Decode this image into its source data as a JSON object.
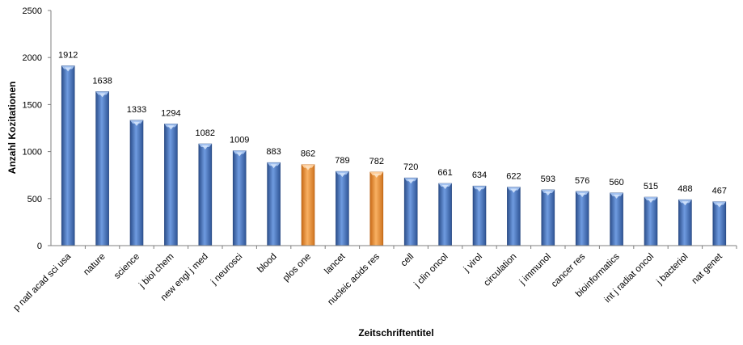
{
  "chart_data": {
    "type": "bar",
    "xlabel": "Zeitschriftentitel",
    "ylabel": "Anzahl Kozitationen",
    "ylim": [
      0,
      2500
    ],
    "yticks": [
      0,
      500,
      1000,
      1500,
      2000,
      2500
    ],
    "grid": false,
    "categories": [
      "p natl acad sci usa",
      "nature",
      "science",
      "j biol chem",
      "new engl j med",
      "j neurosci",
      "blood",
      "plos one",
      "lancet",
      "nucleic acids res",
      "cell",
      "j clin oncol",
      "j virol",
      "circulation",
      "j immunol",
      "cancer res",
      "bioinformatics",
      "int j radiat oncol",
      "j bacteriol",
      "nat genet"
    ],
    "values": [
      1912,
      1638,
      1333,
      1294,
      1082,
      1009,
      883,
      862,
      789,
      782,
      720,
      661,
      634,
      622,
      593,
      576,
      560,
      515,
      488,
      467
    ],
    "highlighted": [
      "plos one",
      "nucleic acids res"
    ],
    "colors": {
      "default": "#4f7bbf",
      "highlight": "#f0923a"
    }
  }
}
